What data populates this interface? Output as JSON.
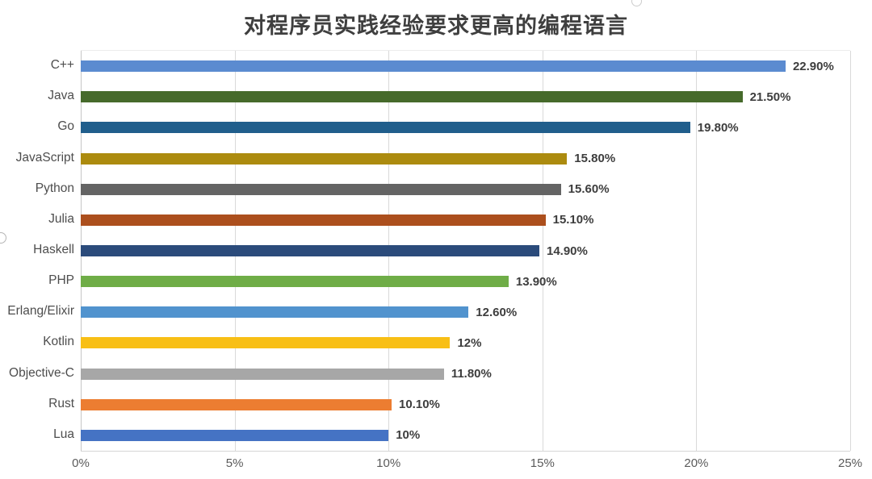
{
  "chart_data": {
    "type": "bar",
    "orientation": "horizontal",
    "title": "对程序员实践经验要求更高的编程语言",
    "categories": [
      "C++",
      "Java",
      "Go",
      "JavaScript",
      "Python",
      "Julia",
      "Haskell",
      "PHP",
      "Erlang/Elixir",
      "Kotlin",
      "Objective-C",
      "Rust",
      "Lua"
    ],
    "values": [
      22.9,
      21.5,
      19.8,
      15.8,
      15.6,
      15.1,
      14.9,
      13.9,
      12.6,
      12.0,
      11.8,
      10.1,
      10.0
    ],
    "value_labels": [
      "22.90%",
      "21.50%",
      "19.80%",
      "15.80%",
      "15.60%",
      "15.10%",
      "14.90%",
      "13.90%",
      "12.60%",
      "12%",
      "11.80%",
      "10.10%",
      "10%"
    ],
    "bar_colors": [
      "#5B8BD0",
      "#466A2B",
      "#205E8C",
      "#AC8B0F",
      "#646464",
      "#AC4F1D",
      "#2B4B7B",
      "#6FAD47",
      "#5193CE",
      "#F8BF15",
      "#A7A7A7",
      "#EC7D31",
      "#4573C4"
    ],
    "xlabel": "",
    "ylabel": "",
    "xlim": [
      0,
      25
    ],
    "x_ticks": [
      0,
      5,
      10,
      15,
      20,
      25
    ],
    "x_tick_labels": [
      "0%",
      "5%",
      "10%",
      "15%",
      "20%",
      "25%"
    ],
    "grid": "vertical",
    "legend_position": "none"
  },
  "styles": {
    "gridline_color": "#d9d9d9",
    "axis_line_color": "#c6c6c6",
    "title_color": "#3f3f3f",
    "value_label_color": "#3d3d3d",
    "category_label_color": "#4d4d4d",
    "tick_label_color": "#5a5a5a",
    "background_color": "#ffffff"
  }
}
